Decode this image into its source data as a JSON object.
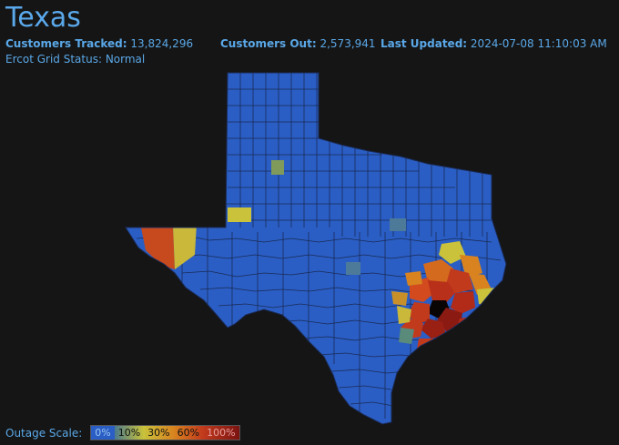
{
  "header": {
    "title": "Texas",
    "customers_tracked_label": "Customers Tracked:",
    "customers_tracked_value": "13,824,296",
    "customers_out_label": "Customers Out:",
    "customers_out_value": "2,573,941",
    "last_updated_label": "Last Updated:",
    "last_updated_value": "2024-07-08 11:10:03 AM",
    "grid_status_label": "Ercot Grid Status:",
    "grid_status_value": "Normal"
  },
  "legend": {
    "label": "Outage Scale:",
    "stops": [
      {
        "text": "0%",
        "color": "#2a5ec4"
      },
      {
        "text": "10%",
        "color": "#c9c23a"
      },
      {
        "text": "30%",
        "color": "#d8831f"
      },
      {
        "text": "60%",
        "color": "#c23a1c"
      },
      {
        "text": "100%",
        "color": "#7a1310"
      }
    ]
  },
  "colors": {
    "background": "#151515",
    "county_base": "#2a5ec4",
    "county_border": "#1a2a55",
    "accent_text": "#5aa8e8"
  }
}
